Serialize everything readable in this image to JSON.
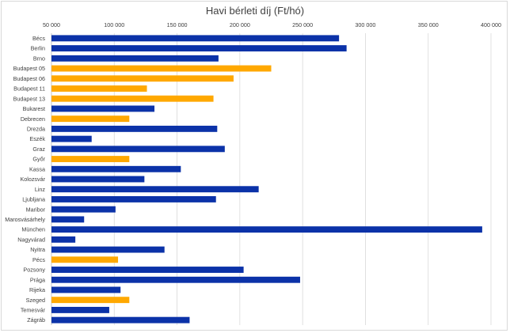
{
  "chart_data": {
    "type": "bar",
    "orientation": "horizontal",
    "title": "Havi bérleti díj (Ft/hó)",
    "xlim": [
      50000,
      400000
    ],
    "x_ticks": [
      50000,
      100000,
      150000,
      200000,
      250000,
      300000,
      350000,
      400000
    ],
    "x_tick_labels": [
      "50 000",
      "100 000",
      "150 000",
      "200 000",
      "250 000",
      "300 000",
      "350 000",
      "400 000"
    ],
    "x_axis_position": "top",
    "grid": true,
    "colors": {
      "foreign": "#0b32a8",
      "hungarian": "#ffa800"
    },
    "categories": [
      "Bécs",
      "Berlin",
      "Brno",
      "Budapest 05",
      "Budapest 06",
      "Budapest 11",
      "Budapest 13",
      "Bukarest",
      "Debrecen",
      "Drezda",
      "Eszék",
      "Graz",
      "Győr",
      "Kassa",
      "Kolozsvár",
      "Linz",
      "Ljubljana",
      "Maribor",
      "Marosvásárhely",
      "München",
      "Nagyvárad",
      "Nyitra",
      "Pécs",
      "Pozsony",
      "Prága",
      "Rijeka",
      "Szeged",
      "Temesvár",
      "Zágráb"
    ],
    "values": [
      279000,
      285000,
      183000,
      225000,
      195000,
      126000,
      179000,
      132000,
      112000,
      182000,
      82000,
      188000,
      112000,
      153000,
      124000,
      215000,
      181000,
      101000,
      76000,
      393000,
      69000,
      140000,
      103000,
      203000,
      248000,
      105000,
      112000,
      96000,
      160000
    ],
    "bar_color_keys": [
      "foreign",
      "foreign",
      "foreign",
      "hungarian",
      "hungarian",
      "hungarian",
      "hungarian",
      "foreign",
      "hungarian",
      "foreign",
      "foreign",
      "foreign",
      "hungarian",
      "foreign",
      "foreign",
      "foreign",
      "foreign",
      "foreign",
      "foreign",
      "foreign",
      "foreign",
      "foreign",
      "hungarian",
      "foreign",
      "foreign",
      "foreign",
      "hungarian",
      "foreign",
      "foreign"
    ]
  }
}
